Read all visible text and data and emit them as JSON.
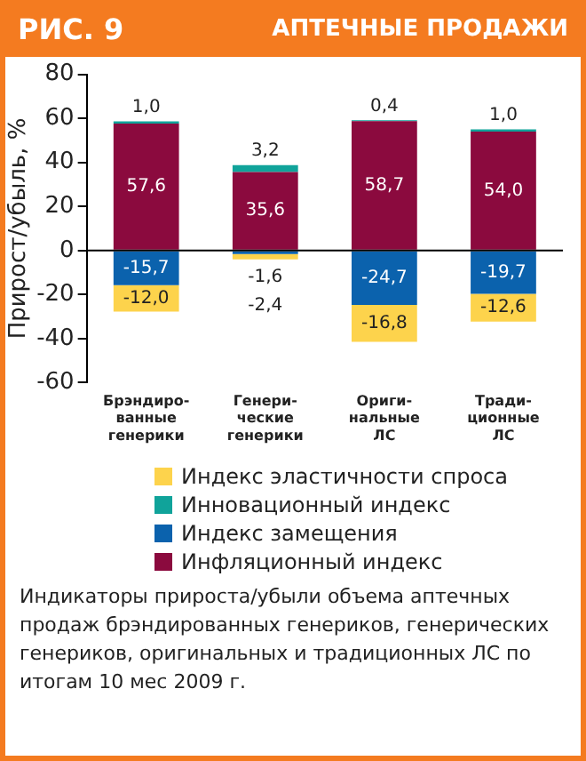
{
  "chart_data": {
    "type": "bar",
    "title": "РИС. 9",
    "subtitle": "АПТЕЧНЫЕ ПРОДАЖИ",
    "ylabel": "Прирост/убыль, %",
    "categories": [
      "Брэндиро-\nванные\nгенерики",
      "Генери-\nческие\nгенерики",
      "Ориги-\nнальные\nЛС",
      "Тради-\nционные\nЛС"
    ],
    "stacked": true,
    "ylim": [
      -60,
      80
    ],
    "yticks": [
      -60,
      -40,
      -20,
      0,
      20,
      40,
      60,
      80
    ],
    "legend": "bottom",
    "series": [
      {
        "name": "Инфляционный индекс",
        "color": "#8b0a3e",
        "values": [
          57.6,
          35.6,
          58.7,
          54.0
        ],
        "value_labels": [
          "57,6",
          "35,6",
          "58,7",
          "54,0"
        ]
      },
      {
        "name": "Индекс замещения",
        "color": "#0b62ad",
        "values": [
          -15.7,
          -1.6,
          -24.7,
          -19.7
        ],
        "value_labels": [
          "-15,7",
          "-1,6",
          "-24,7",
          "-19,7"
        ]
      },
      {
        "name": "Инновационный индекс",
        "color": "#10a39a",
        "values": [
          1.0,
          3.2,
          0.4,
          1.0
        ],
        "value_labels": [
          "1,0",
          "3,2",
          "0,4",
          "1,0"
        ]
      },
      {
        "name": "Индекс эластичности спроса",
        "color": "#fdd34c",
        "values": [
          -12.0,
          -2.4,
          -16.8,
          -12.6
        ],
        "value_labels": [
          "-12,0",
          "-2,4",
          "-16,8",
          "-12,6"
        ]
      }
    ],
    "annotations": [
      "Индикаторы прироста/убыли объема аптечных продаж брэндированных генериков, генерических генериков, оригинальных и традиционных ЛС по итогам 10 мес 2009 г."
    ]
  }
}
